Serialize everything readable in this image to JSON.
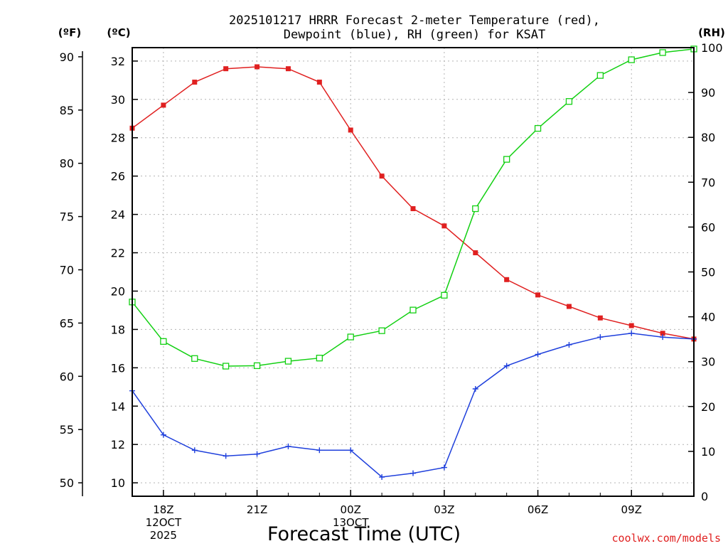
{
  "chart_data": {
    "type": "line",
    "title_line1": "2025101217 HRRR Forecast 2-meter Temperature (red),",
    "title_line2": "Dewpoint (blue), RH (green) for KSAT",
    "xlabel": "Forecast Time (UTC)",
    "credit": "coolwx.com/models",
    "unit_f": "(ºF)",
    "unit_c": "(ºC)",
    "unit_rh": "(RH)",
    "hours": [
      17,
      18,
      19,
      20,
      21,
      22,
      23,
      24,
      25,
      26,
      27,
      28,
      29,
      30,
      31,
      32,
      33,
      34,
      35
    ],
    "x_ticks": [
      {
        "hour": 18,
        "lines": [
          "18Z",
          "12OCT",
          "2025"
        ]
      },
      {
        "hour": 21,
        "lines": [
          "21Z"
        ]
      },
      {
        "hour": 24,
        "lines": [
          "00Z",
          "13OCT"
        ]
      },
      {
        "hour": 27,
        "lines": [
          "03Z"
        ]
      },
      {
        "hour": 30,
        "lines": [
          "06Z"
        ]
      },
      {
        "hour": 33,
        "lines": [
          "09Z"
        ]
      }
    ],
    "xlim": [
      17,
      35
    ],
    "c_axis": {
      "ylim": [
        9.3,
        32.7
      ],
      "ticks": [
        10,
        12,
        14,
        16,
        18,
        20,
        22,
        24,
        26,
        28,
        30,
        32
      ]
    },
    "f_axis": {
      "ticks": [
        50,
        55,
        60,
        65,
        70,
        75,
        80,
        85,
        90
      ]
    },
    "rh_axis": {
      "ylim": [
        0,
        100
      ],
      "ticks": [
        0,
        10,
        20,
        30,
        40,
        50,
        60,
        70,
        80,
        90,
        100
      ]
    },
    "series": [
      {
        "name": "Temperature (red)",
        "axis": "c",
        "color": "#e02020",
        "marker": "filled-square",
        "values": [
          28.5,
          29.7,
          30.9,
          31.6,
          31.7,
          31.6,
          30.9,
          28.4,
          26.0,
          24.3,
          23.4,
          22.0,
          20.6,
          19.8,
          19.2,
          18.6,
          18.2,
          17.8,
          17.5
        ]
      },
      {
        "name": "Dewpoint (blue)",
        "axis": "c",
        "color": "#1e3fdc",
        "marker": "plus",
        "values": [
          14.8,
          12.5,
          11.7,
          11.4,
          11.5,
          11.9,
          11.7,
          11.7,
          10.3,
          10.5,
          10.8,
          14.9,
          16.1,
          16.7,
          17.2,
          17.6,
          17.8,
          17.6,
          17.5
        ]
      },
      {
        "name": "RH (green)",
        "axis": "rh",
        "color": "#12d012",
        "marker": "hollow-square",
        "values": [
          43.3,
          34.5,
          30.7,
          29.0,
          29.1,
          30.1,
          30.8,
          35.5,
          36.9,
          41.5,
          44.8,
          64.1,
          75.1,
          82.0,
          88.0,
          93.8,
          97.3,
          98.9,
          99.7
        ]
      }
    ]
  }
}
